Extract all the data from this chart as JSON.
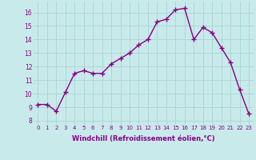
{
  "x": [
    0,
    1,
    2,
    3,
    4,
    5,
    6,
    7,
    8,
    9,
    10,
    11,
    12,
    13,
    14,
    15,
    16,
    17,
    18,
    19,
    20,
    21,
    22,
    23
  ],
  "y": [
    9.2,
    9.2,
    8.7,
    10.1,
    11.5,
    11.7,
    11.5,
    11.5,
    12.2,
    12.6,
    13.0,
    13.6,
    14.0,
    15.3,
    15.5,
    16.2,
    16.3,
    14.0,
    14.9,
    14.5,
    13.4,
    12.3,
    10.3,
    8.5
  ],
  "line_color": "#880088",
  "marker": "+",
  "markersize": 4,
  "linewidth": 1.0,
  "bg_color": "#c8eaea",
  "grid_color": "#aad4d4",
  "xlabel": "Windchill (Refroidissement éolien,°C)",
  "yticks": [
    8,
    9,
    10,
    11,
    12,
    13,
    14,
    15,
    16
  ],
  "xlim": [
    -0.5,
    23.5
  ],
  "ylim": [
    7.7,
    16.8
  ],
  "tick_color": "#880088",
  "xtick_fontsize": 5.0,
  "ytick_fontsize": 5.5,
  "xlabel_fontsize": 6.0
}
